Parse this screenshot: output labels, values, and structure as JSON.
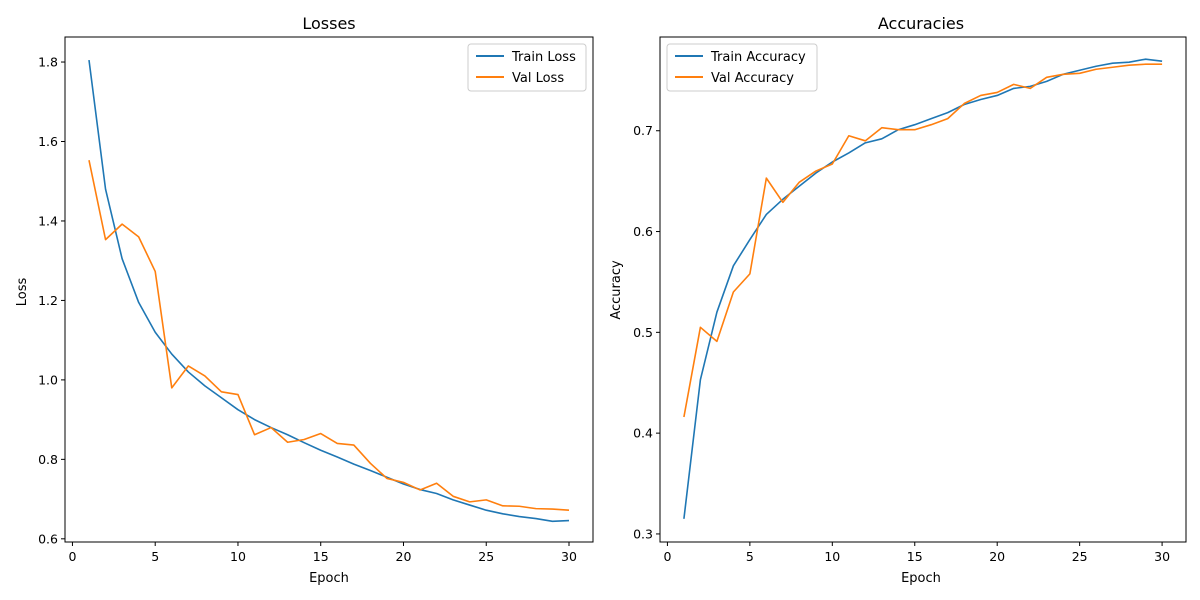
{
  "chart_data": [
    {
      "type": "line",
      "title": "Losses",
      "xlabel": "Epoch",
      "ylabel": "Loss",
      "xlim": [
        -0.45,
        31.45
      ],
      "ylim": [
        0.592,
        1.863
      ],
      "xticks": [
        0,
        5,
        10,
        15,
        20,
        25,
        30
      ],
      "yticks": [
        0.6,
        0.8,
        1.0,
        1.2,
        1.4,
        1.6,
        1.8
      ],
      "ytick_labels": [
        "0.6",
        "0.8",
        "1.0",
        "1.2",
        "1.4",
        "1.6",
        "1.8"
      ],
      "grid": false,
      "legend_position": "upper right",
      "x": [
        1,
        2,
        3,
        4,
        5,
        6,
        7,
        8,
        9,
        10,
        11,
        12,
        13,
        14,
        15,
        16,
        17,
        18,
        19,
        20,
        21,
        22,
        23,
        24,
        25,
        26,
        27,
        28,
        29,
        30
      ],
      "series": [
        {
          "name": "Train Loss",
          "color": "#1f77b4",
          "values": [
            1.805,
            1.48,
            1.305,
            1.195,
            1.12,
            1.065,
            1.02,
            0.985,
            0.955,
            0.925,
            0.9,
            0.88,
            0.862,
            0.842,
            0.823,
            0.806,
            0.788,
            0.772,
            0.755,
            0.738,
            0.724,
            0.714,
            0.698,
            0.685,
            0.672,
            0.663,
            0.656,
            0.651,
            0.644,
            0.646
          ]
        },
        {
          "name": "Val Loss",
          "color": "#ff7f0e",
          "values": [
            1.553,
            1.353,
            1.392,
            1.36,
            1.273,
            0.98,
            1.035,
            1.01,
            0.97,
            0.963,
            0.862,
            0.88,
            0.843,
            0.85,
            0.865,
            0.84,
            0.836,
            0.79,
            0.752,
            0.742,
            0.723,
            0.74,
            0.707,
            0.693,
            0.698,
            0.683,
            0.682,
            0.676,
            0.675,
            0.672
          ]
        }
      ]
    },
    {
      "type": "line",
      "title": "Accuracies",
      "xlabel": "Epoch",
      "ylabel": "Accuracy",
      "xlim": [
        -0.45,
        31.45
      ],
      "ylim": [
        0.292,
        0.793
      ],
      "xticks": [
        0,
        5,
        10,
        15,
        20,
        25,
        30
      ],
      "yticks": [
        0.3,
        0.4,
        0.5,
        0.6,
        0.7
      ],
      "ytick_labels": [
        "0.3",
        "0.4",
        "0.5",
        "0.6",
        "0.7"
      ],
      "grid": false,
      "legend_position": "upper left",
      "x": [
        1,
        2,
        3,
        4,
        5,
        6,
        7,
        8,
        9,
        10,
        11,
        12,
        13,
        14,
        15,
        16,
        17,
        18,
        19,
        20,
        21,
        22,
        23,
        24,
        25,
        26,
        27,
        28,
        29,
        30
      ],
      "series": [
        {
          "name": "Train Accuracy",
          "color": "#1f77b4",
          "values": [
            0.315,
            0.453,
            0.52,
            0.566,
            0.592,
            0.617,
            0.632,
            0.645,
            0.658,
            0.669,
            0.678,
            0.688,
            0.692,
            0.701,
            0.706,
            0.712,
            0.718,
            0.726,
            0.731,
            0.735,
            0.742,
            0.744,
            0.749,
            0.756,
            0.76,
            0.764,
            0.767,
            0.768,
            0.771,
            0.769
          ]
        },
        {
          "name": "Val Accuracy",
          "color": "#ff7f0e",
          "values": [
            0.416,
            0.505,
            0.491,
            0.54,
            0.558,
            0.653,
            0.629,
            0.649,
            0.66,
            0.667,
            0.695,
            0.69,
            0.703,
            0.701,
            0.701,
            0.706,
            0.712,
            0.727,
            0.735,
            0.738,
            0.746,
            0.742,
            0.753,
            0.756,
            0.757,
            0.761,
            0.763,
            0.765,
            0.766,
            0.766
          ]
        }
      ]
    }
  ]
}
